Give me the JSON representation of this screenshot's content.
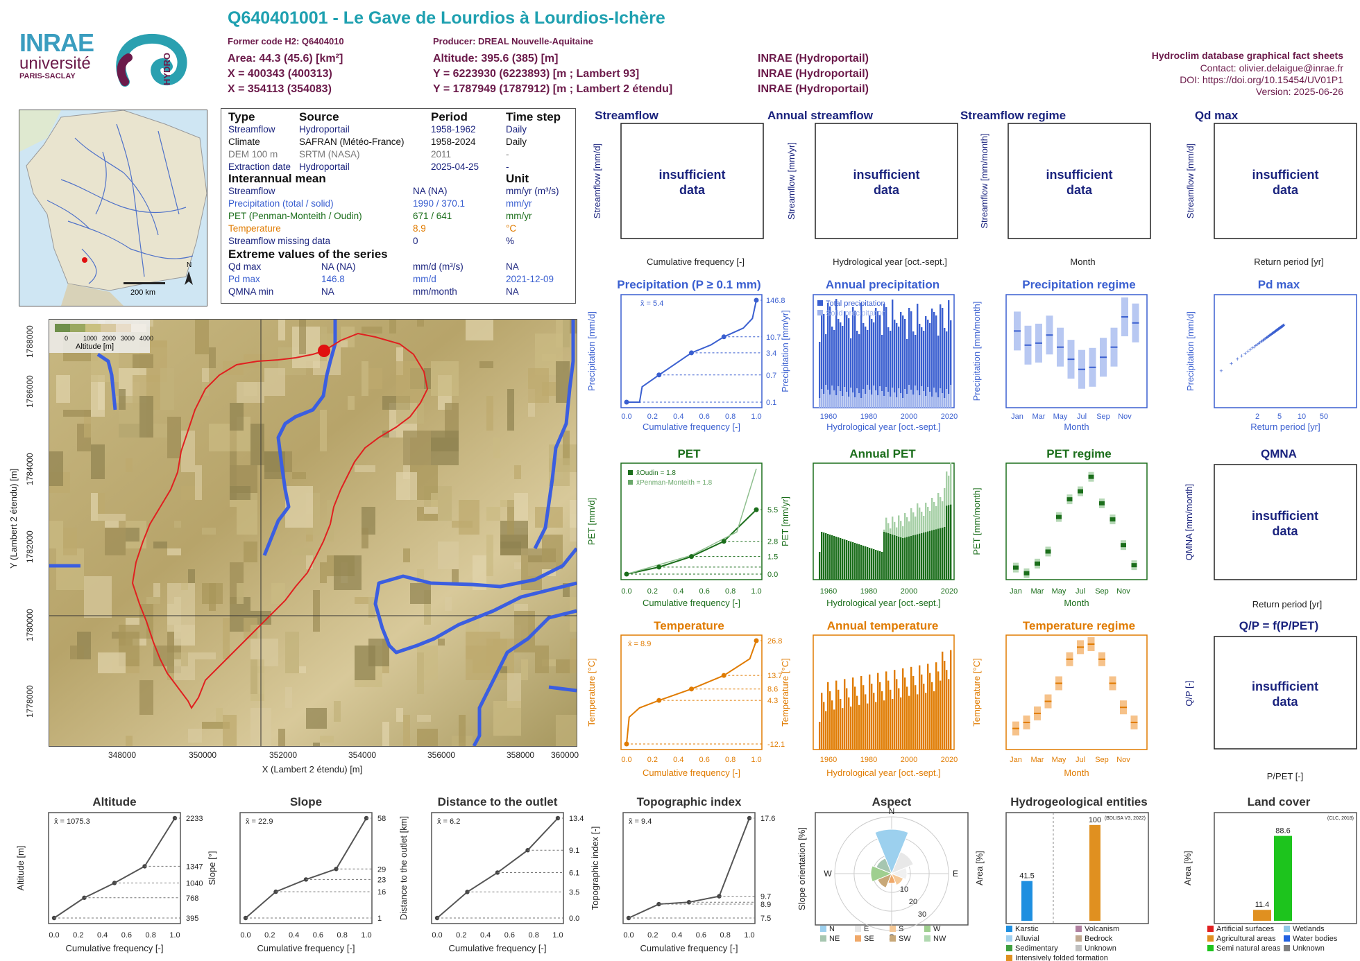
{
  "header": {
    "title": "Q640401001 - Le Gave de Lourdios à Lourdios-Ichère",
    "former_code": "Former code H2: Q6404010",
    "producer": "Producer: DREAL Nouvelle-Aquitaine",
    "area": "Area: 44.3 (45.6) [km²]",
    "altitude": "Altitude: 395.6 (385) [m]",
    "x93": "X = 400343 (400313)",
    "y93": "Y = 6223930 (6223893) [m ; Lambert 93]",
    "x2e": "X = 354113 (354083)",
    "y2e": "Y = 1787949 (1787912) [m ; Lambert 2 étendu]",
    "src1": "INRAE (Hydroportail)",
    "src2": "INRAE (Hydroportail)",
    "src3": "INRAE (Hydroportail)"
  },
  "logos": {
    "inrae": "INRAE",
    "universite": "université",
    "paris_saclay": "PARIS-SACLAY",
    "hydro": "HYDRO"
  },
  "sidebar_info": {
    "db": "Hydroclim database graphical fact sheets",
    "contact": "Contact: olivier.delaigue@inrae.fr",
    "doi": "DOI: https://doi.org/10.15454/UV01P1",
    "version": "Version: 2025-06-26"
  },
  "map_mini": {
    "scale": "200 km",
    "north": "N"
  },
  "table": {
    "headers": [
      "Type",
      "Source",
      "Period",
      "Time step"
    ],
    "rows": [
      {
        "type": "Streamflow",
        "source": "Hydroportail",
        "period": "1958-1962",
        "step": "Daily",
        "color": "#1a237e"
      },
      {
        "type": "Climate",
        "source": "SAFRAN (Météo-France)",
        "period": "1958-2024",
        "step": "Daily",
        "color": "#111"
      },
      {
        "type": "DEM 100 m",
        "source": "SRTM (NASA)",
        "period": "2011",
        "step": "-",
        "color": "#777"
      },
      {
        "type": "Extraction date",
        "source": "Hydroportail",
        "period": "2025-04-25",
        "step": "-",
        "color": "#1a237e"
      }
    ],
    "interannual_title": "Interannual mean",
    "unit_title": "Unit",
    "interannual": [
      {
        "label": "Streamflow",
        "value": "NA (NA)",
        "unit": "mm/yr (m³/s)",
        "color": "#1a237e"
      },
      {
        "label": "Precipitation (total / solid)",
        "value": "1990 / 370.1",
        "unit": "mm/yr",
        "color": "#3a5fd0"
      },
      {
        "label": "PET (Penman-Monteith / Oudin)",
        "value": "671 / 641",
        "unit": "mm/yr",
        "color": "#1b6e1b"
      },
      {
        "label": "Temperature",
        "value": "8.9",
        "unit": "°C",
        "color": "#e07b00"
      },
      {
        "label": "Streamflow missing data",
        "value": "0",
        "unit": "%",
        "color": "#1a237e"
      }
    ],
    "extreme_title": "Extreme values of the series",
    "extremes": [
      {
        "label": "Qd max",
        "value": "NA (NA)",
        "unit": "mm/d (m³/s)",
        "date": "NA",
        "color": "#1a237e"
      },
      {
        "label": "Pd max",
        "value": "146.8",
        "unit": "mm/d",
        "date": "2021-12-09",
        "color": "#3a5fd0"
      },
      {
        "label": "QMNA min",
        "value": "NA",
        "unit": "mm/month",
        "date": "NA",
        "color": "#1a237e"
      }
    ]
  },
  "basin_map": {
    "legend_title": "Altitude [m]",
    "legend_ticks": [
      "0",
      "1000",
      "2000",
      "3000",
      "4000"
    ],
    "x_ticks": [
      "348000",
      "350000",
      "352000",
      "354000",
      "356000",
      "358000",
      "360000"
    ],
    "y_ticks": [
      "1778000",
      "1780000",
      "1782000",
      "1784000",
      "1786000",
      "1788000"
    ],
    "xlabel": "X (Lambert 2 étendu) [m]",
    "ylabel": "Y (Lambert 2 étendu) [m]"
  },
  "streamflow_panels": [
    {
      "title": "Streamflow",
      "ylabel": "Streamflow [mm/d]",
      "xlabel": "Cumulative frequency [-]",
      "msg": "insufficient data"
    },
    {
      "title": "Annual streamflow",
      "ylabel": "Streamflow [mm/yr]",
      "xlabel": "Hydrological year [oct.-sept.]",
      "msg": "insufficient data"
    },
    {
      "title": "Streamflow regime",
      "ylabel": "Streamflow [mm/month]",
      "xlabel": "Month",
      "msg": "insufficient data"
    },
    {
      "title": "Qd max",
      "ylabel": "Streamflow [mm/d]",
      "xlabel": "Return period [yr]",
      "msg": "insufficient data"
    }
  ],
  "precip": {
    "title": "Precipitation (P ≥ 0.1 mm)",
    "mean": "x̄ = 5.4",
    "ylabel": "Precipitation [mm/d]",
    "xlabel": "Cumulative frequency [-]",
    "right_labels": [
      "146.8",
      "10.7",
      "3.4",
      "0.7",
      "0.1"
    ],
    "annual_title": "Annual precipitation",
    "annual_ylabel": "Precipitation [mm/yr]",
    "annual_xlabel": "Hydrological year [oct.-sept.]",
    "legend_total": "Total precipitation",
    "legend_solid": "Solid precipitation",
    "regime_title": "Precipitation regime",
    "regime_ylabel": "Precipitation [mm/month]",
    "regime_xlabel": "Month",
    "pmax_title": "Pd max",
    "pmax_ylabel": "Precipitation [mm/d]",
    "pmax_xlabel": "Return period [yr]"
  },
  "pet": {
    "title": "PET",
    "ylabel": "PET [mm/d]",
    "xlabel": "Cumulative frequency [-]",
    "legend_oudin": "x̄Oudin = 1.8",
    "legend_pm": "x̄Penman-Monteith = 1.8",
    "right_labels": [
      "5.5",
      "2.8",
      "1.5",
      "0.0"
    ],
    "annual_title": "Annual PET",
    "annual_ylabel": "PET [mm/yr]",
    "annual_xlabel": "Hydrological year [oct.-sept.]",
    "regime_title": "PET regime",
    "regime_ylabel": "PET [mm/month]",
    "regime_xlabel": "Month",
    "qmna_title": "QMNA",
    "qmna_ylabel": "QMNA [mm/month]",
    "qmna_xlabel": "Return period [yr]",
    "qmna_msg": "insufficient data"
  },
  "temp": {
    "title": "Temperature",
    "mean": "x̄ = 8.9",
    "ylabel": "Temperature [°C]",
    "xlabel": "Cumulative frequency [-]",
    "right_labels": [
      "26.8",
      "13.7",
      "8.6",
      "4.3",
      "-12.1"
    ],
    "annual_title": "Annual temperature",
    "annual_ylabel": "Temperature [°C]",
    "annual_xlabel": "Hydrological year [oct.-sept.]",
    "regime_title": "Temperature regime",
    "regime_ylabel": "Temperature [°C]",
    "regime_xlabel": "Month",
    "qp_title": "Q/P = f(P/PET)",
    "qp_ylabel": "Q/P [-]",
    "qp_xlabel": "P/PET [-]",
    "qp_msg": "insufficient data"
  },
  "bottom": {
    "altitude": {
      "title": "Altitude",
      "mean": "x̄ = 1075.3",
      "ylabel": "Altitude [m]",
      "xlabel": "Cumulative frequency [-]",
      "right": [
        "2233",
        "1347",
        "1040",
        "768",
        "395"
      ]
    },
    "slope": {
      "title": "Slope",
      "mean": "x̄ = 22.9",
      "ylabel": "Slope [°]",
      "xlabel": "Cumulative frequency [-]",
      "right": [
        "58",
        "29",
        "23",
        "16",
        "1"
      ]
    },
    "distance": {
      "title": "Distance to the outlet",
      "mean": "x̄ = 6.2",
      "ylabel": "Distance to the outlet [km]",
      "xlabel": "Cumulative frequency [-]",
      "right": [
        "13.4",
        "9.1",
        "6.1",
        "3.5",
        "0.0"
      ]
    },
    "topo": {
      "title": "Topographic index",
      "mean": "x̄ = 9.4",
      "ylabel": "Topographic index [-]",
      "xlabel": "Cumulative frequency [-]",
      "right": [
        "17.6",
        "9.7",
        "8.9",
        "7.5"
      ]
    },
    "aspect": {
      "title": "Aspect",
      "ylabel": "Slope orientation [%]",
      "dirs": [
        "N",
        "E",
        "S",
        "W"
      ],
      "rings": [
        "10",
        "20",
        "30"
      ],
      "legend": [
        "N",
        "E",
        "S",
        "W",
        "NE",
        "SE",
        "SW",
        "NW"
      ]
    },
    "hydrogeo": {
      "title": "Hydrogeological entities",
      "ylabel": "Area [%]",
      "source": "(BDLISA V3, 2022)",
      "legend": [
        "Karstic",
        "Volcanism",
        "Alluvial",
        "Bedrock",
        "Sedimentary",
        "Unknown",
        "Intensively folded formation"
      ]
    },
    "landcover": {
      "title": "Land cover",
      "ylabel": "Area [%]",
      "source": "(CLC, 2018)",
      "legend": [
        "Artificial surfaces",
        "Wetlands",
        "Agricultural areas",
        "Water bodies",
        "Semi natural areas",
        "Unknown"
      ]
    }
  },
  "chart_data": [
    {
      "type": "line",
      "title": "Precipitation (P ≥ 0.1 mm)",
      "x": [
        0,
        0.25,
        0.5,
        0.75,
        1
      ],
      "y": [
        0.1,
        0.7,
        3.4,
        10.7,
        146.8
      ],
      "xlabel": "Cumulative frequency [-]",
      "ylabel": "Precipitation [mm/d]",
      "yscale": "log"
    },
    {
      "type": "bar",
      "title": "Annual precipitation",
      "x_range": [
        1959,
        2024
      ],
      "ylim": [
        0,
        2700
      ],
      "series": [
        {
          "name": "Total precipitation",
          "values": "~1700-2600"
        },
        {
          "name": "Solid precipitation",
          "values": "~200-700"
        }
      ]
    },
    {
      "type": "boxplot",
      "title": "Precipitation regime",
      "categories": [
        "Jan",
        "Feb",
        "Mar",
        "Apr",
        "May",
        "Jun",
        "Jul",
        "Aug",
        "Sep",
        "Oct",
        "Nov",
        "Dec"
      ],
      "median": [
        190,
        155,
        160,
        180,
        150,
        120,
        95,
        100,
        125,
        150,
        225,
        210
      ]
    },
    {
      "type": "scatter",
      "title": "Pd max",
      "xlabel": "Return period [yr]",
      "ylabel": "Precipitation [mm/d]"
    },
    {
      "type": "line",
      "title": "PET",
      "x": [
        0,
        0.25,
        0.5,
        0.75,
        1
      ],
      "y": [
        0.0,
        0.6,
        1.5,
        2.8,
        5.5
      ]
    },
    {
      "type": "bar",
      "title": "Annual PET",
      "ylim": [
        500,
        850
      ],
      "x_range": [
        1959,
        2024
      ]
    },
    {
      "type": "boxplot",
      "title": "PET regime",
      "categories": [
        "Jan",
        "Feb",
        "Mar",
        "Apr",
        "May",
        "Jun",
        "Jul",
        "Aug",
        "Sep",
        "Oct",
        "Nov",
        "Dec"
      ],
      "median": [
        15,
        8,
        20,
        35,
        78,
        100,
        110,
        128,
        95,
        75,
        43,
        18
      ]
    },
    {
      "type": "line",
      "title": "Temperature",
      "x": [
        0,
        0.25,
        0.5,
        0.75,
        1
      ],
      "y": [
        -12.1,
        4.3,
        8.6,
        13.7,
        26.8
      ]
    },
    {
      "type": "bar",
      "title": "Annual temperature",
      "ylim": [
        7,
        11
      ],
      "x_range": [
        1959,
        2024
      ]
    },
    {
      "type": "boxplot",
      "title": "Temperature regime",
      "categories": [
        "Jan",
        "Feb",
        "Mar",
        "Apr",
        "May",
        "Jun",
        "Jul",
        "Aug",
        "Sep",
        "Oct",
        "Nov",
        "Dec"
      ],
      "median": [
        2.5,
        3.5,
        5,
        7,
        10,
        14,
        16,
        16.5,
        14,
        10,
        6,
        3.5
      ]
    },
    {
      "type": "line",
      "title": "Altitude",
      "x": [
        0,
        0.25,
        0.5,
        0.75,
        1
      ],
      "y": [
        395,
        768,
        1040,
        1347,
        2233
      ]
    },
    {
      "type": "line",
      "title": "Slope",
      "x": [
        0,
        0.25,
        0.5,
        0.75,
        1
      ],
      "y": [
        1,
        16,
        23,
        29,
        58
      ]
    },
    {
      "type": "line",
      "title": "Distance to the outlet",
      "x": [
        0,
        0.25,
        0.5,
        0.75,
        1
      ],
      "y": [
        0,
        3.5,
        6.1,
        9.1,
        13.4
      ]
    },
    {
      "type": "line",
      "title": "Topographic index",
      "x": [
        0,
        0.25,
        0.5,
        0.75,
        1
      ],
      "y": [
        7.5,
        8.9,
        9.1,
        9.7,
        17.6
      ]
    },
    {
      "type": "bar",
      "title": "Hydrogeological entities",
      "categories": [
        "Karstic",
        "Intensively folded formation"
      ],
      "values": [
        41.5,
        100
      ]
    },
    {
      "type": "bar",
      "title": "Land cover",
      "categories": [
        "Agricultural areas",
        "Semi natural areas"
      ],
      "values": [
        11.4,
        88.6
      ]
    }
  ]
}
